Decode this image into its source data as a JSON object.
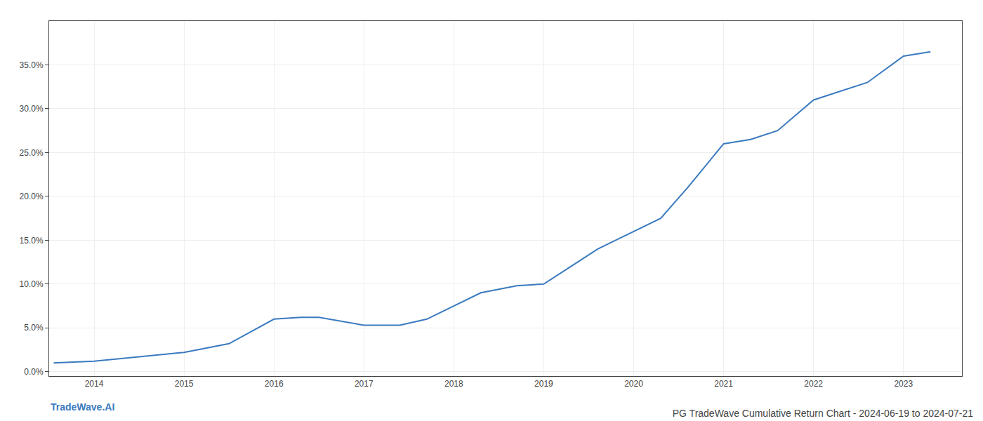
{
  "chart_data": {
    "type": "line",
    "title": "PG TradeWave Cumulative Return Chart - 2024-06-19 to 2024-07-21",
    "annotations": [
      "TradeWave.AI"
    ],
    "x": [
      2013.55,
      2014.0,
      2014.5,
      2015.0,
      2015.5,
      2016.0,
      2016.3,
      2016.5,
      2017.0,
      2017.4,
      2017.7,
      2018.0,
      2018.3,
      2018.7,
      2019.0,
      2019.3,
      2019.6,
      2019.9,
      2020.0,
      2020.3,
      2020.6,
      2021.0,
      2021.3,
      2021.6,
      2022.0,
      2022.3,
      2022.6,
      2023.0,
      2023.3
    ],
    "values": [
      0.01,
      0.012,
      0.017,
      0.022,
      0.032,
      0.06,
      0.062,
      0.062,
      0.053,
      0.053,
      0.06,
      0.075,
      0.09,
      0.098,
      0.1,
      0.12,
      0.14,
      0.155,
      0.16,
      0.175,
      0.21,
      0.26,
      0.265,
      0.275,
      0.31,
      0.32,
      0.33,
      0.36,
      0.365
    ],
    "color": "#3a7abf",
    "xlim": [
      2013.5,
      2023.65
    ],
    "ylim": [
      -0.005,
      0.4
    ],
    "xticks": [
      2014,
      2015,
      2016,
      2017,
      2018,
      2019,
      2020,
      2021,
      2022,
      2023
    ],
    "yticks": [
      {
        "value": 0.0,
        "label": "0.0%"
      },
      {
        "value": 0.05,
        "label": "5.0%"
      },
      {
        "value": 0.1,
        "label": "10.0%"
      },
      {
        "value": 0.15,
        "label": "15.0%"
      },
      {
        "value": 0.2,
        "label": "20.0%"
      },
      {
        "value": 0.25,
        "label": "25.0%"
      },
      {
        "value": 0.3,
        "label": "30.0%"
      },
      {
        "value": 0.35,
        "label": "35.0%"
      }
    ],
    "grid": true
  }
}
